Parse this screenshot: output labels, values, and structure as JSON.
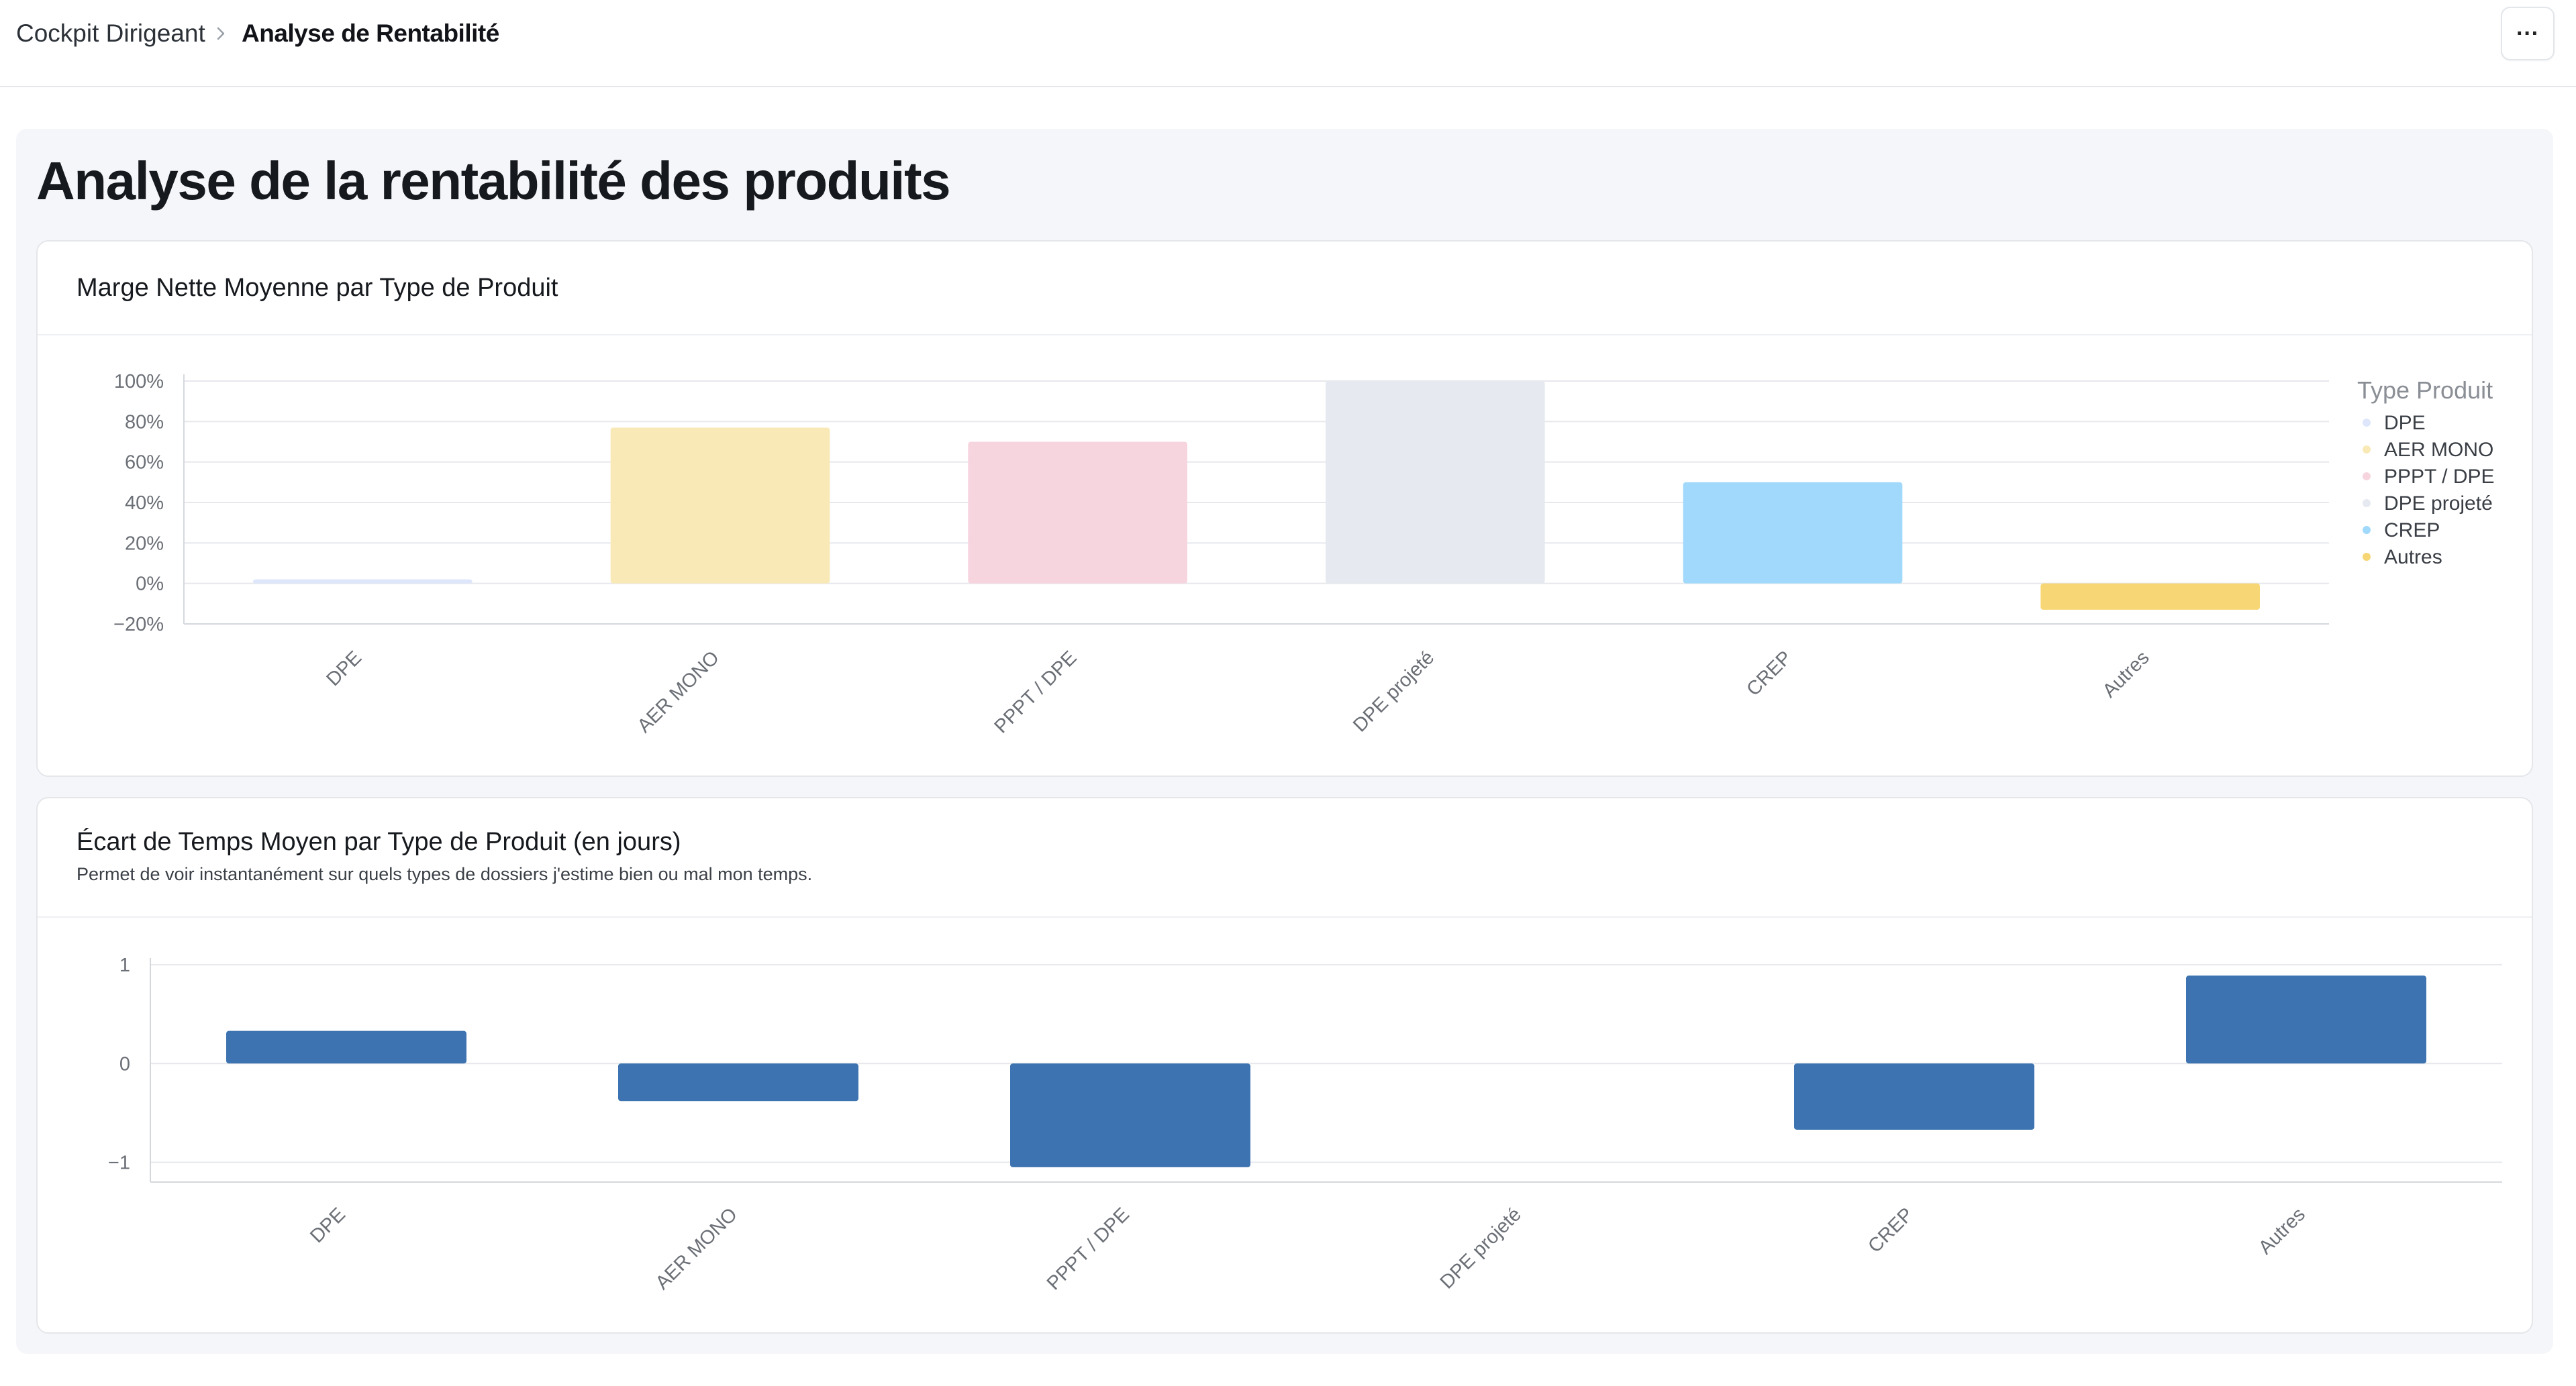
{
  "breadcrumb": {
    "root": "Cockpit Dirigeant",
    "current": "Analyse de Rentabilité"
  },
  "header": {
    "more_label": "···"
  },
  "page": {
    "title": "Analyse de la rentabilité des produits"
  },
  "chart1": {
    "title": "Marge Nette Moyenne par Type de Produit",
    "legend_title": "Type Produit"
  },
  "chart2": {
    "title": "Écart de Temps Moyen par Type de Produit (en jours)",
    "description": "Permet de voir instantanément sur quels types de dossiers j'estime bien ou mal mon temps."
  },
  "chart_data": [
    {
      "type": "bar",
      "title": "Marge Nette Moyenne par Type de Produit",
      "categories": [
        "DPE",
        "AER MONO",
        "PPPT / DPE",
        "DPE projeté",
        "CREP",
        "Autres"
      ],
      "values": [
        2,
        77,
        70,
        100,
        50,
        -13
      ],
      "colors": [
        "#dde6fa",
        "#f9e9b7",
        "#f6d5df",
        "#e6e9f0",
        "#a0d9fb",
        "#f7d675"
      ],
      "ylim": [
        -20,
        100
      ],
      "yticks": [
        100,
        80,
        60,
        40,
        20,
        0,
        -20
      ],
      "ytick_labels": [
        "100%",
        "80%",
        "60%",
        "40%",
        "20%",
        "0%",
        "−20%"
      ],
      "legend": {
        "title": "Type Produit",
        "position": "right",
        "entries": [
          "DPE",
          "AER MONO",
          "PPPT / DPE",
          "DPE projeté",
          "CREP",
          "Autres"
        ]
      },
      "grid": true
    },
    {
      "type": "bar",
      "title": "Écart de Temps Moyen par Type de Produit (en jours)",
      "categories": [
        "DPE",
        "AER MONO",
        "PPPT / DPE",
        "DPE projeté",
        "CREP",
        "Autres"
      ],
      "values": [
        0.33,
        -0.38,
        -1.05,
        0,
        -0.67,
        0.89
      ],
      "color": "#3c73b0",
      "ylim": [
        -1.2,
        1
      ],
      "yticks": [
        1,
        0,
        -1
      ],
      "ytick_labels": [
        "1",
        "0",
        "−1"
      ],
      "grid": true
    }
  ]
}
